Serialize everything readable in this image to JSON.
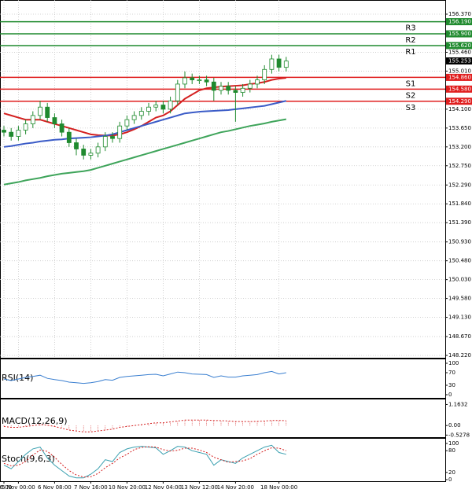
{
  "chart_data": [
    {
      "type": "candlestick",
      "categories": [
        "16:00",
        null,
        "5 Nov 00:00",
        null,
        null,
        null,
        null,
        "6 Nov 08:00",
        null,
        null,
        null,
        null,
        "7 Nov 16:00",
        null,
        null,
        null,
        null,
        "10 Nov 20:00",
        null,
        null,
        null,
        null,
        "12 Nov 04:00",
        null,
        null,
        null,
        null,
        "13 Nov 12:00",
        null,
        null,
        null,
        null,
        "14 Nov 20:00",
        null,
        null,
        null,
        null,
        null,
        "18 Nov 00:00",
        null
      ],
      "open": [
        153.6,
        153.55,
        153.45,
        153.6,
        153.75,
        153.95,
        154.15,
        153.9,
        153.75,
        153.55,
        153.3,
        153.15,
        153.0,
        153.05,
        153.2,
        153.45,
        153.4,
        153.7,
        153.85,
        153.95,
        154.05,
        154.15,
        154.2,
        154.1,
        154.3,
        154.7,
        154.85,
        154.8,
        154.8,
        154.75,
        154.55,
        154.65,
        154.55,
        154.5,
        154.6,
        154.7,
        154.8,
        155.05,
        155.3,
        155.1
      ],
      "high": [
        153.7,
        153.65,
        153.7,
        153.85,
        154.05,
        154.3,
        154.25,
        154.0,
        153.85,
        153.65,
        153.4,
        153.25,
        153.15,
        153.3,
        153.55,
        153.55,
        153.8,
        153.95,
        154.05,
        154.15,
        154.25,
        154.3,
        154.3,
        154.4,
        154.8,
        155.0,
        154.95,
        154.9,
        154.9,
        154.85,
        154.75,
        154.75,
        154.65,
        154.7,
        154.8,
        154.9,
        155.15,
        155.4,
        155.4,
        155.35
      ],
      "low": [
        153.45,
        153.35,
        153.35,
        153.5,
        153.65,
        153.85,
        153.8,
        153.65,
        153.45,
        153.2,
        153.0,
        152.9,
        152.9,
        152.95,
        153.1,
        153.3,
        153.3,
        153.6,
        153.75,
        153.85,
        153.95,
        154.05,
        154.0,
        154.0,
        154.2,
        154.6,
        154.7,
        154.7,
        154.65,
        154.3,
        154.45,
        154.45,
        153.8,
        154.4,
        154.5,
        154.6,
        154.7,
        154.95,
        155.0,
        155.0
      ],
      "close": [
        153.55,
        153.45,
        153.6,
        153.75,
        153.95,
        154.15,
        153.9,
        153.75,
        153.55,
        153.3,
        153.15,
        153.0,
        153.05,
        153.2,
        153.45,
        153.4,
        153.7,
        153.85,
        153.95,
        154.05,
        154.15,
        154.2,
        154.1,
        154.3,
        154.7,
        154.85,
        154.8,
        154.8,
        154.75,
        154.55,
        154.65,
        154.55,
        154.5,
        154.6,
        154.7,
        154.8,
        155.05,
        155.3,
        155.1,
        155.25
      ],
      "color": "#1f8a2e",
      "series": [
        {
          "color": "#d42020",
          "values": [
            154.0,
            153.95,
            153.9,
            153.85,
            153.85,
            153.85,
            153.8,
            153.75,
            153.7,
            153.65,
            153.6,
            153.55,
            153.5,
            153.48,
            153.47,
            153.47,
            153.5,
            153.55,
            153.62,
            153.7,
            153.8,
            153.9,
            153.95,
            154.05,
            154.2,
            154.35,
            154.45,
            154.55,
            154.6,
            154.62,
            154.64,
            154.65,
            154.66,
            154.67,
            154.7,
            154.72,
            154.75,
            154.8,
            154.83,
            154.85
          ]
        },
        {
          "color": "#3a5bc7",
          "values": [
            153.2,
            153.22,
            153.25,
            153.28,
            153.3,
            153.33,
            153.35,
            153.37,
            153.38,
            153.4,
            153.41,
            153.42,
            153.43,
            153.45,
            153.47,
            153.5,
            153.55,
            153.6,
            153.65,
            153.7,
            153.75,
            153.8,
            153.85,
            153.9,
            153.95,
            154.0,
            154.02,
            154.04,
            154.05,
            154.06,
            154.07,
            154.08,
            154.1,
            154.12,
            154.14,
            154.16,
            154.18,
            154.22,
            154.26,
            154.3
          ]
        },
        {
          "color": "#3ea45a",
          "values": [
            152.3,
            152.33,
            152.36,
            152.4,
            152.43,
            152.46,
            152.5,
            152.53,
            152.56,
            152.58,
            152.6,
            152.62,
            152.65,
            152.7,
            152.75,
            152.8,
            152.85,
            152.9,
            152.95,
            153.0,
            153.05,
            153.1,
            153.15,
            153.2,
            153.25,
            153.3,
            153.35,
            153.4,
            153.45,
            153.5,
            153.55,
            153.58,
            153.62,
            153.66,
            153.7,
            153.73,
            153.76,
            153.8,
            153.83,
            153.86
          ]
        }
      ],
      "levels": [
        {
          "name": "R3",
          "value": 156.19,
          "label": "156.190",
          "color": "#1f8a2e"
        },
        {
          "name": "R2",
          "value": 155.9,
          "label": "155.900",
          "color": "#1f8a2e"
        },
        {
          "name": "R1",
          "value": 155.62,
          "label": "155.620",
          "color": "#1f8a2e"
        },
        {
          "name": "S1",
          "value": 154.86,
          "label": "154.860",
          "color": "#e01e1e"
        },
        {
          "name": "S2",
          "value": 154.58,
          "label": "154.580",
          "color": "#e01e1e"
        },
        {
          "name": "S3",
          "value": 154.29,
          "label": "154.290",
          "color": "#e01e1e"
        }
      ],
      "last": 155.253,
      "ylim": [
        148.164,
        156.708
      ],
      "yticks": [
        {
          "value": 156.37,
          "label": "156.370"
        },
        {
          "value": 155.46,
          "label": "155.460"
        },
        {
          "value": 155.01,
          "label": "155.010"
        },
        {
          "value": 154.1,
          "label": "154.100"
        },
        {
          "value": 153.65,
          "label": "153.650"
        },
        {
          "value": 153.2,
          "label": "153.200"
        },
        {
          "value": 152.75,
          "label": "152.750"
        },
        {
          "value": 152.29,
          "label": "152.290"
        },
        {
          "value": 151.84,
          "label": "151.840"
        },
        {
          "value": 151.39,
          "label": "151.390"
        },
        {
          "value": 150.93,
          "label": "150.930"
        },
        {
          "value": 150.48,
          "label": "150.480"
        },
        {
          "value": 150.03,
          "label": "150.030"
        },
        {
          "value": 149.58,
          "label": "149.580"
        },
        {
          "value": 149.13,
          "label": "149.130"
        },
        {
          "value": 148.67,
          "label": "148.670"
        },
        {
          "value": 148.22,
          "label": "148.220"
        }
      ],
      "grid": true
    },
    {
      "type": "line",
      "title": "RSI(14)",
      "series": [
        {
          "color": "#3a7fd0",
          "values": [
            50,
            45,
            50,
            55,
            58,
            62,
            52,
            48,
            45,
            40,
            38,
            36,
            38,
            42,
            48,
            46,
            55,
            58,
            60,
            62,
            64,
            65,
            60,
            66,
            72,
            70,
            66,
            65,
            64,
            55,
            60,
            56,
            56,
            60,
            62,
            64,
            70,
            74,
            66,
            70
          ]
        }
      ],
      "ylim": [
        0,
        100
      ],
      "yticks": [
        100,
        70,
        30,
        0
      ]
    },
    {
      "type": "macd",
      "title": "MACD(12,26,9)",
      "series": [
        {
          "color": "#d42020",
          "values": [
            -0.05,
            -0.1,
            -0.1,
            -0.05,
            0,
            0.05,
            0.02,
            -0.05,
            -0.15,
            -0.25,
            -0.3,
            -0.35,
            -0.35,
            -0.3,
            -0.25,
            -0.2,
            -0.1,
            -0.05,
            0,
            0.05,
            0.1,
            0.15,
            0.15,
            0.2,
            0.25,
            0.3,
            0.3,
            0.3,
            0.3,
            0.28,
            0.27,
            0.25,
            0.22,
            0.22,
            0.22,
            0.23,
            0.25,
            0.28,
            0.28,
            0.27
          ]
        }
      ],
      "ylim": [
        -0.6,
        1.4
      ],
      "yticks": [
        1.1632,
        {
          "value": 0,
          "label": "0.00"
        },
        -0.5278
      ]
    },
    {
      "type": "line",
      "title": "Stoch(9,6,3)",
      "series": [
        {
          "color": "#3aa0b0",
          "values": [
            40,
            30,
            50,
            70,
            85,
            90,
            60,
            40,
            25,
            10,
            5,
            5,
            15,
            30,
            55,
            50,
            75,
            85,
            90,
            92,
            90,
            88,
            70,
            80,
            92,
            90,
            80,
            75,
            70,
            40,
            55,
            50,
            45,
            60,
            70,
            80,
            90,
            95,
            75,
            70
          ]
        },
        {
          "color": "#d42020",
          "dash": true,
          "values": [
            45,
            38,
            40,
            50,
            68,
            82,
            78,
            62,
            42,
            25,
            13,
            7,
            8,
            17,
            33,
            45,
            60,
            70,
            83,
            89,
            91,
            90,
            83,
            79,
            81,
            87,
            87,
            82,
            75,
            62,
            55,
            48,
            50,
            52,
            58,
            70,
            80,
            88,
            87,
            80
          ]
        }
      ],
      "ylim": [
        0,
        100
      ],
      "yticks": [
        100,
        80,
        20,
        0
      ]
    }
  ]
}
